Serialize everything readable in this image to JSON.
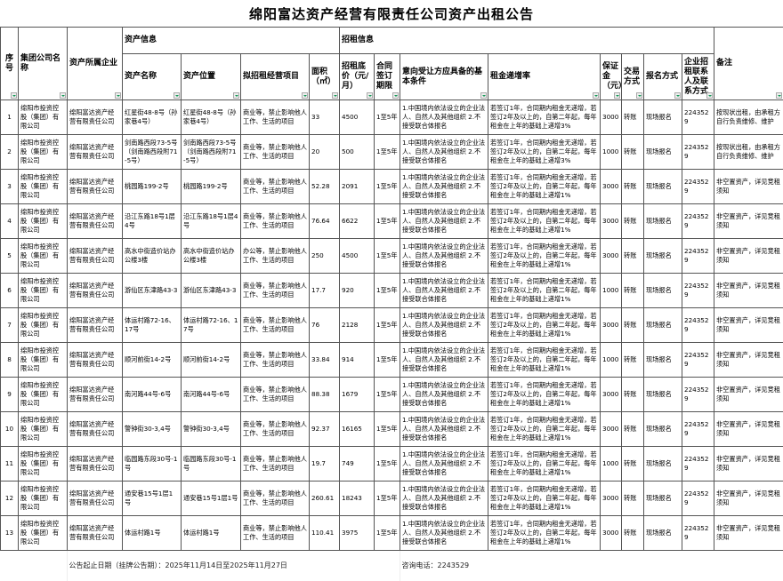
{
  "title": "绵阳富达资产经营有限责任公司资产出租公告",
  "groups": {
    "asset_info": "资产信息",
    "rent_info": "招租信息"
  },
  "headers": {
    "no": "序号",
    "group_company": "集团公司名称",
    "owner": "资产所属企业",
    "asset_name": "资产名称",
    "location": "资产位置",
    "project": "拟招租经营项目",
    "area": "面积（㎡）",
    "price": "招租底价（元/月）",
    "term": "合同签订期限",
    "conditions": "意向受让方应具备的基本条件",
    "increase": "租金递增率",
    "deposit": "保证金（元）",
    "trade": "交易方式",
    "signup": "报名方式",
    "contact": "企业招租联系人及联系方式",
    "remark": "备注"
  },
  "rows": [
    {
      "no": "1",
      "group_company": "绵阳市投资控股（集团）有限公司",
      "owner": "绵阳富达资产经营有限责任公司",
      "asset_name": "红星街48-8号（孙家巷4号）",
      "location": "红星街48-8号（孙家巷4号）",
      "project": "商业等，禁止影响他人工作、生活的项目",
      "area": "33",
      "price": "4500",
      "term": "1至5年",
      "conditions": "1.中国境内依法设立的企业法人、自然人及其他组织 2.不接受联合体报名",
      "increase": "若签订1年，合同期内租金无递增，若签订2年及以上的，自第二年起，每年租金在上年的基础上递增3%",
      "deposit": "3000",
      "trade": "转账",
      "signup": "现场报名",
      "contact": "2243529",
      "remark": "按现状出租，由承租方自行负责维修、维护"
    },
    {
      "no": "2",
      "group_company": "绵阳市投资控股（集团）有限公司",
      "owner": "绵阳富达资产经营有限责任公司",
      "asset_name": "剑南路西段73-5号（剑南路西段附71-5号）",
      "location": "剑南路西段73-5号（剑南路西段附71-5号）",
      "project": "商业等，禁止影响他人工作、生活的项目",
      "area": "20",
      "price": "500",
      "term": "1至5年",
      "conditions": "1.中国境内依法设立的企业法人、自然人及其他组织 2.不接受联合体报名",
      "increase": "若签订1年，合同期内租金无递增，若签订2年及以上的，自第二年起，每年租金在上年的基础上递增3%",
      "deposit": "1000",
      "trade": "转账",
      "signup": "现场报名",
      "contact": "2243529",
      "remark": "按现状出租，由承租方自行负责维修、维护"
    },
    {
      "no": "3",
      "group_company": "绵阳市投资控股（集团）有限公司",
      "owner": "绵阳富达资产经营有限责任公司",
      "asset_name": "桃园路199-2号",
      "location": "桃园路199-2号",
      "project": "商业等，禁止影响他人工作、生活的项目",
      "area": "52.28",
      "price": "2091",
      "term": "1至5年",
      "conditions": "1.中国境内依法设立的企业法人、自然人及其他组织 2.不接受联合体报名",
      "increase": "若签订1年，合同期内租金无递增，若签订2年及以上的，自第二年起，每年租金在上年的基础上递增1%",
      "deposit": "3000",
      "trade": "转账",
      "signup": "现场报名",
      "contact": "2243529",
      "remark": "非空置资产，详见竞租须知"
    },
    {
      "no": "4",
      "group_company": "绵阳市投资控股（集团）有限公司",
      "owner": "绵阳富达资产经营有限责任公司",
      "asset_name": "沿江东路18号1层4号",
      "location": "沿江东路18号1层4号",
      "project": "商业等，禁止影响他人工作、生活的项目",
      "area": "76.64",
      "price": "6622",
      "term": "1至5年",
      "conditions": "1.中国境内依法设立的企业法人、自然人及其他组织 2.不接受联合体报名",
      "increase": "若签订1年，合同期内租金无递增，若签订2年及以上的，自第二年起，每年租金在上年的基础上递增1%",
      "deposit": "3000",
      "trade": "转账",
      "signup": "现场报名",
      "contact": "2243529",
      "remark": "非空置资产，详见竞租须知"
    },
    {
      "no": "5",
      "group_company": "绵阳市投资控股（集团）有限公司",
      "owner": "绵阳富达资产经营有限责任公司",
      "asset_name": "高水中街造价站办公楼3楼",
      "location": "高水中街造价站办公楼3楼",
      "project": "办公等，禁止影响他人工作、生活的项目",
      "area": "250",
      "price": "4500",
      "term": "1至5年",
      "conditions": "1.中国境内依法设立的企业法人、自然人及其他组织 2.不接受联合体报名",
      "increase": "若签订1年，合同期内租金无递增，若签订2年及以上的，自第二年起，每年租金在上年的基础上递增1%",
      "deposit": "3000",
      "trade": "转账",
      "signup": "现场报名",
      "contact": "2243529",
      "remark": "非空置资产，详见竞租须知"
    },
    {
      "no": "6",
      "group_company": "绵阳市投资控股（集团）有限公司",
      "owner": "绵阳富达资产经营有限责任公司",
      "asset_name": "游仙区东津路43-3",
      "location": "游仙区东津路43-3",
      "project": "商业等，禁止影响他人工作、生活的项目",
      "area": "17.7",
      "price": "920",
      "term": "1至5年",
      "conditions": "1.中国境内依法设立的企业法人、自然人及其他组织 2.不接受联合体报名",
      "increase": "若签订1年，合同期内租金无递增，若签订2年及以上的，自第二年起，每年租金在上年的基础上递增1%",
      "deposit": "1000",
      "trade": "转账",
      "signup": "现场报名",
      "contact": "2243529",
      "remark": "非空置资产，详见竞租须知"
    },
    {
      "no": "7",
      "group_company": "绵阳市投资控股（集团）有限公司",
      "owner": "绵阳富达资产经营有限责任公司",
      "asset_name": "体运村路72-16、17号",
      "location": "体运村路72-16、17号",
      "project": "商业等，禁止影响他人工作、生活的项目",
      "area": "76",
      "price": "2128",
      "term": "1至5年",
      "conditions": "1.中国境内依法设立的企业法人、自然人及其他组织 2.不接受联合体报名",
      "increase": "若签订1年，合同期内租金无递增，若签订2年及以上的，自第二年起，每年租金在上年的基础上递增1%",
      "deposit": "3000",
      "trade": "转账",
      "signup": "现场报名",
      "contact": "2243529",
      "remark": "非空置资产，详见竞租须知"
    },
    {
      "no": "8",
      "group_company": "绵阳市投资控股（集团）有限公司",
      "owner": "绵阳富达资产经营有限责任公司",
      "asset_name": "顺河前街14-2号",
      "location": "顺河前街14-2号",
      "project": "商业等，禁止影响他人工作、生活的项目",
      "area": "33.84",
      "price": "914",
      "term": "1至5年",
      "conditions": "1.中国境内依法设立的企业法人、自然人及其他组织 2.不接受联合体报名",
      "increase": "若签订1年，合同期内租金无递增，若签订2年及以上的，自第二年起，每年租金在上年的基础上递增1%",
      "deposit": "1000",
      "trade": "转账",
      "signup": "现场报名",
      "contact": "2243529",
      "remark": "非空置资产，详见竞租须知"
    },
    {
      "no": "9",
      "group_company": "绵阳市投资控股（集团）有限公司",
      "owner": "绵阳富达资产经营有限责任公司",
      "asset_name": "南河路44号-6号",
      "location": "南河路44号-6号",
      "project": "商业等，禁止影响他人工作、生活的项目",
      "area": "88.38",
      "price": "1679",
      "term": "1至5年",
      "conditions": "1.中国境内依法设立的企业法人、自然人及其他组织 2.不接受联合体报名",
      "increase": "若签订1年，合同期内租金无递增，若签订2年及以上的，自第二年起，每年租金在上年的基础上递增1%",
      "deposit": "3000",
      "trade": "转账",
      "signup": "现场报名",
      "contact": "2243529",
      "remark": "非空置资产，详见竞租须知"
    },
    {
      "no": "10",
      "group_company": "绵阳市投资控股（集团）有限公司",
      "owner": "绵阳富达资产经营有限责任公司",
      "asset_name": "警钟街30-3,4号",
      "location": "警钟街30-3,4号",
      "project": "商业等，禁止影响他人工作、生活的项目",
      "area": "92.37",
      "price": "16165",
      "term": "1至5年",
      "conditions": "1.中国境内依法设立的企业法人、自然人及其他组织 2.不接受联合体报名",
      "increase": "若签订1年，合同期内租金无递增，若签订2年及以上的，自第二年起，每年租金在上年的基础上递增1%",
      "deposit": "3000",
      "trade": "转账",
      "signup": "现场报名",
      "contact": "2243529",
      "remark": "非空置资产，详见竞租须知"
    },
    {
      "no": "11",
      "group_company": "绵阳市投资控股（集团）有限公司",
      "owner": "绵阳富达资产经营有限责任公司",
      "asset_name": "临园路东段30号-1号",
      "location": "临园路东段30号-1号",
      "project": "商业等，禁止影响他人工作、生活的项目",
      "area": "19.7",
      "price": "749",
      "term": "1至5年",
      "conditions": "1.中国境内依法设立的企业法人、自然人及其他组织 2.不接受联合体报名",
      "increase": "若签订1年，合同期内租金无递增，若签订2年及以上的，自第二年起，每年租金在上年的基础上递增1%",
      "deposit": "1000",
      "trade": "转账",
      "signup": "现场报名",
      "contact": "2243529",
      "remark": "非空置资产，详见竞租须知"
    },
    {
      "no": "12",
      "group_company": "绵阳市投资控股（集团）有限公司",
      "owner": "绵阳富达资产经营有限责任公司",
      "asset_name": "通安巷15号1层1号",
      "location": "通安巷15号1层1号",
      "project": "商业等，禁止影响他人工作、生活的项目",
      "area": "260.61",
      "price": "18243",
      "term": "1至5年",
      "conditions": "1.中国境内依法设立的企业法人、自然人及其他组织 2.不接受联合体报名",
      "increase": "若签订1年，合同期内租金无递增，若签订2年及以上的，自第二年起，每年租金在上年的基础上递增1%",
      "deposit": "3000",
      "trade": "转账",
      "signup": "现场报名",
      "contact": "2243529",
      "remark": "非空置资产，详见竞租须知"
    },
    {
      "no": "13",
      "group_company": "绵阳市投资控股（集团）有限公司",
      "owner": "绵阳富达资产经营有限责任公司",
      "asset_name": "体运村路1号",
      "location": "体运村路1号",
      "project": "商业等，禁止影响他人工作、生活的项目",
      "area": "110.41",
      "price": "3975",
      "term": "1至5年",
      "conditions": "1.中国境内依法设立的企业法人、自然人及其他组织 2.不接受联合体报名",
      "increase": "若签订1年，合同期内租金无递增，若签订2年及以上的，自第二年起，每年租金在上年的基础上递增1%",
      "deposit": "3000",
      "trade": "转账",
      "signup": "现场报名",
      "contact": "2243529",
      "remark": "非空置资产，详见竞租须知"
    }
  ],
  "footer": {
    "period": "公告起止日期（挂牌公告期）：2025年11月14日至2025年11月27日",
    "phone": "咨询电话：2243529"
  },
  "colors": {
    "border": "#555555",
    "filter_arrow": "#1a9a5a"
  }
}
